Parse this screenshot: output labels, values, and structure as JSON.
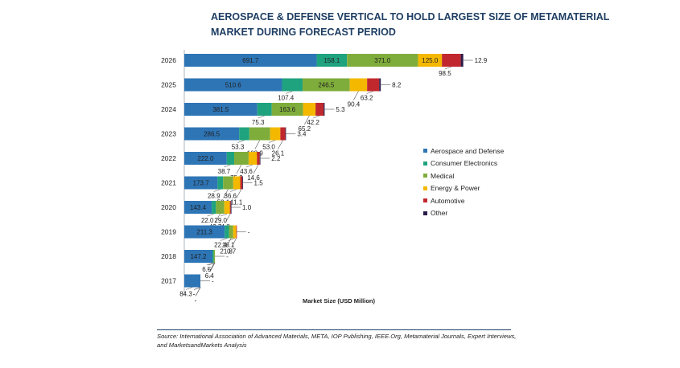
{
  "title_lines": [
    "AEROSPACE & DEFENSE VERTICAL TO HOLD LARGEST SIZE OF METAMATERIAL",
    "MARKET DURING FORECAST PERIOD"
  ],
  "source": "Source: International Association of Advanced Materials, META, IOP Publishing, IEEE.Org, Metamaterial Journals, Expert Interviews, and MarketsandMarkets Analysis",
  "chart_data": {
    "type": "bar",
    "orientation": "horizontal",
    "stacked": true,
    "title": "AEROSPACE & DEFENSE VERTICAL TO HOLD LARGEST SIZE OF METAMATERIAL MARKET DURING FORECAST PERIOD",
    "xlabel": "Market Size (USD Million)",
    "ylabel": "",
    "legend_position": "right",
    "grid": false,
    "categories": [
      "2026",
      "2025",
      "2024",
      "2023",
      "2022",
      "2021",
      "2020",
      "2019",
      "2018",
      "2017"
    ],
    "series": [
      {
        "name": "Aerospace and Defense",
        "color": "#2e75b6",
        "values": [
          691.7,
          510.6,
          381.5,
          286.5,
          222.0,
          173.7,
          143.4,
          211.3,
          147.2,
          84.3
        ],
        "labels": [
          "691.7",
          "510.6",
          "381.5",
          "286.5",
          "222.0",
          "173.7",
          "143.4",
          "211.3",
          "147.2",
          "84.3"
        ]
      },
      {
        "name": "Consumer Electronics",
        "color": "#1fa37f",
        "values": [
          158.1,
          107.4,
          75.3,
          53.3,
          38.7,
          28.9,
          22.0,
          22.4,
          6.5,
          0
        ],
        "labels": [
          "158.1",
          "107.4",
          "75.3",
          "53.3",
          "38.7",
          "28.9",
          "22.0",
          "22.4",
          "6.5",
          "-"
        ]
      },
      {
        "name": "Medical",
        "color": "#7fad3b",
        "values": [
          371.0,
          246.5,
          163.6,
          108.9,
          75.2,
          53.1,
          43.7,
          21.8,
          6.4,
          0
        ],
        "labels": [
          "371.0",
          "246.5",
          "163.6",
          "108.9",
          "75.2",
          "53.1",
          "43.7",
          "21.8",
          "6.4",
          "-"
        ]
      },
      {
        "name": "Energy & Power",
        "color": "#f5b800",
        "values": [
          125.0,
          90.4,
          65.2,
          53.0,
          43.6,
          36.6,
          29.0,
          16.1,
          0,
          0
        ],
        "labels": [
          "125.0",
          "90.4",
          "65.2",
          "53.0",
          "43.6",
          "36.6",
          "29.0",
          "16.1",
          "-",
          "-"
        ]
      },
      {
        "name": "Automotive",
        "color": "#c0282d",
        "values": [
          98.5,
          63.2,
          42.2,
          26.1,
          14.6,
          11.1,
          4.8,
          0.7,
          0,
          0
        ],
        "labels": [
          "98.5",
          "63.2",
          "42.2",
          "26.1",
          "14.6",
          "11.1",
          "4.8",
          "0.7",
          "-",
          "-"
        ]
      },
      {
        "name": "Other",
        "color": "#2b1b4a",
        "values": [
          12.9,
          8.2,
          5.3,
          3.4,
          2.2,
          1.5,
          1.0,
          0,
          0,
          0
        ],
        "labels": [
          "12.9",
          "8.2",
          "5.3",
          "3.4",
          "2.2",
          "1.5",
          "1.0",
          "-",
          "-",
          "-"
        ]
      }
    ]
  }
}
